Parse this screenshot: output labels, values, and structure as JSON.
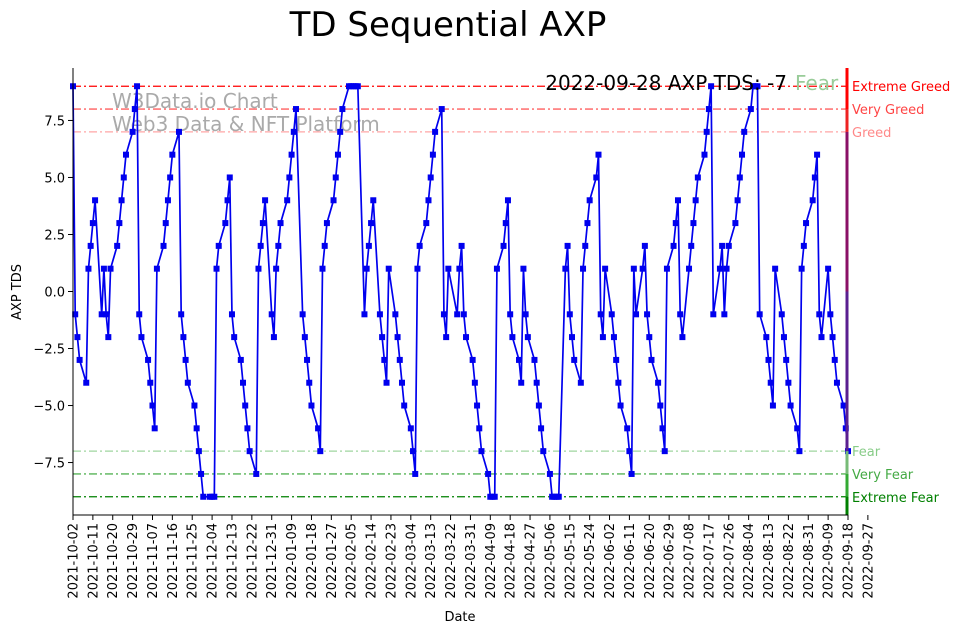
{
  "chart_data": {
    "type": "line",
    "title": "TD Sequential AXP",
    "xlabel": "Date",
    "ylabel": "AXP TDS",
    "status_text": "2022-09-28 AXP TDS: -7",
    "status_label": "Fear",
    "watermark": [
      "W3Data.io Chart",
      "Web3 Data & NFT Platform"
    ],
    "ylim": [
      -9.8,
      9.8
    ],
    "yticks": [
      -7.5,
      -5.0,
      -2.5,
      0.0,
      2.5,
      5.0,
      7.5
    ],
    "ytick_labels": [
      "−7.5",
      "−5.0",
      "−2.5",
      "0.0",
      "2.5",
      "5.0",
      "7.5"
    ],
    "start_date": "2021-10-02",
    "xticks": [
      "2021-10-02",
      "2021-10-11",
      "2021-10-20",
      "2021-10-29",
      "2021-11-07",
      "2021-11-16",
      "2021-11-25",
      "2021-12-04",
      "2021-12-13",
      "2021-12-22",
      "2021-12-31",
      "2022-01-09",
      "2022-01-18",
      "2022-01-27",
      "2022-02-05",
      "2022-02-14",
      "2022-02-23",
      "2022-03-04",
      "2022-03-13",
      "2022-03-22",
      "2022-03-31",
      "2022-04-09",
      "2022-04-18",
      "2022-04-27",
      "2022-05-06",
      "2022-05-15",
      "2022-05-24",
      "2022-06-02",
      "2022-06-11",
      "2022-06-20",
      "2022-06-29",
      "2022-07-08",
      "2022-07-17",
      "2022-07-26",
      "2022-08-04",
      "2022-08-13",
      "2022-08-22",
      "2022-08-31",
      "2022-09-09",
      "2022-09-18",
      "2022-09-27"
    ],
    "levels": [
      {
        "value": 9,
        "label": "Extreme Greed",
        "color": "#ff0000",
        "opacity": 1.0
      },
      {
        "value": 8,
        "label": "Very Greed",
        "color": "#ff4444",
        "opacity": 0.85
      },
      {
        "value": 7,
        "label": "Greed",
        "color": "#ff8888",
        "opacity": 0.75
      },
      {
        "value": -7,
        "label": "Fear",
        "color": "#88cc88",
        "opacity": 0.8
      },
      {
        "value": -8,
        "label": "Very Fear",
        "color": "#44aa44",
        "opacity": 0.9
      },
      {
        "value": -9,
        "label": "Extreme Fear",
        "color": "#008000",
        "opacity": 1.0
      }
    ],
    "series": [
      {
        "name": "AXP TDS",
        "color": "#0000ee",
        "points": [
          [
            0,
            9
          ],
          [
            1,
            -1
          ],
          [
            2,
            -2
          ],
          [
            3,
            -3
          ],
          [
            6,
            -4
          ],
          [
            7,
            1
          ],
          [
            8,
            2
          ],
          [
            9,
            3
          ],
          [
            10,
            4
          ],
          [
            13,
            -1
          ],
          [
            14,
            1
          ],
          [
            15,
            -1
          ],
          [
            16,
            -2
          ],
          [
            17,
            1
          ],
          [
            20,
            2
          ],
          [
            21,
            3
          ],
          [
            22,
            4
          ],
          [
            23,
            5
          ],
          [
            24,
            6
          ],
          [
            27,
            7
          ],
          [
            28,
            8
          ],
          [
            29,
            9
          ],
          [
            30,
            -1
          ],
          [
            31,
            -2
          ],
          [
            34,
            -3
          ],
          [
            35,
            -4
          ],
          [
            36,
            -5
          ],
          [
            37,
            -6
          ],
          [
            38,
            1
          ],
          [
            41,
            2
          ],
          [
            42,
            3
          ],
          [
            43,
            4
          ],
          [
            44,
            5
          ],
          [
            45,
            6
          ],
          [
            48,
            7
          ],
          [
            49,
            -1
          ],
          [
            50,
            -2
          ],
          [
            51,
            -3
          ],
          [
            52,
            -4
          ],
          [
            55,
            -5
          ],
          [
            56,
            -6
          ],
          [
            57,
            -7
          ],
          [
            58,
            -8
          ],
          [
            59,
            -9
          ],
          [
            62,
            -9
          ],
          [
            63,
            -9
          ],
          [
            64,
            -9
          ],
          [
            65,
            1
          ],
          [
            66,
            2
          ],
          [
            69,
            3
          ],
          [
            70,
            4
          ],
          [
            71,
            5
          ],
          [
            72,
            -1
          ],
          [
            73,
            -2
          ],
          [
            76,
            -3
          ],
          [
            77,
            -4
          ],
          [
            78,
            -5
          ],
          [
            79,
            -6
          ],
          [
            80,
            -7
          ],
          [
            83,
            -8
          ],
          [
            84,
            1
          ],
          [
            85,
            2
          ],
          [
            86,
            3
          ],
          [
            87,
            4
          ],
          [
            90,
            -1
          ],
          [
            91,
            -2
          ],
          [
            92,
            1
          ],
          [
            93,
            2
          ],
          [
            94,
            3
          ],
          [
            97,
            4
          ],
          [
            98,
            5
          ],
          [
            99,
            6
          ],
          [
            100,
            7
          ],
          [
            101,
            8
          ],
          [
            104,
            -1
          ],
          [
            105,
            -2
          ],
          [
            106,
            -3
          ],
          [
            107,
            -4
          ],
          [
            108,
            -5
          ],
          [
            111,
            -6
          ],
          [
            112,
            -7
          ],
          [
            113,
            1
          ],
          [
            114,
            2
          ],
          [
            115,
            3
          ],
          [
            118,
            4
          ],
          [
            119,
            5
          ],
          [
            120,
            6
          ],
          [
            121,
            7
          ],
          [
            122,
            8
          ],
          [
            125,
            9
          ],
          [
            126,
            9
          ],
          [
            127,
            9
          ],
          [
            128,
            9
          ],
          [
            129,
            9
          ],
          [
            132,
            -1
          ],
          [
            133,
            1
          ],
          [
            134,
            2
          ],
          [
            135,
            3
          ],
          [
            136,
            4
          ],
          [
            139,
            -1
          ],
          [
            140,
            -2
          ],
          [
            141,
            -3
          ],
          [
            142,
            -4
          ],
          [
            143,
            1
          ],
          [
            146,
            -1
          ],
          [
            147,
            -2
          ],
          [
            148,
            -3
          ],
          [
            149,
            -4
          ],
          [
            150,
            -5
          ],
          [
            153,
            -6
          ],
          [
            154,
            -7
          ],
          [
            155,
            -8
          ],
          [
            156,
            1
          ],
          [
            157,
            2
          ],
          [
            160,
            3
          ],
          [
            161,
            4
          ],
          [
            162,
            5
          ],
          [
            163,
            6
          ],
          [
            164,
            7
          ],
          [
            167,
            8
          ],
          [
            168,
            -1
          ],
          [
            169,
            -2
          ],
          [
            170,
            1
          ],
          [
            174,
            -1
          ],
          [
            175,
            1
          ],
          [
            176,
            2
          ],
          [
            177,
            -1
          ],
          [
            178,
            -2
          ],
          [
            181,
            -3
          ],
          [
            182,
            -4
          ],
          [
            183,
            -5
          ],
          [
            184,
            -6
          ],
          [
            185,
            -7
          ],
          [
            188,
            -8
          ],
          [
            189,
            -9
          ],
          [
            190,
            -9
          ],
          [
            191,
            -9
          ],
          [
            192,
            1
          ],
          [
            195,
            2
          ],
          [
            196,
            3
          ],
          [
            197,
            4
          ],
          [
            198,
            -1
          ],
          [
            199,
            -2
          ],
          [
            202,
            -3
          ],
          [
            203,
            -4
          ],
          [
            204,
            1
          ],
          [
            205,
            -1
          ],
          [
            206,
            -2
          ],
          [
            209,
            -3
          ],
          [
            210,
            -4
          ],
          [
            211,
            -5
          ],
          [
            212,
            -6
          ],
          [
            213,
            -7
          ],
          [
            216,
            -8
          ],
          [
            217,
            -9
          ],
          [
            218,
            -9
          ],
          [
            219,
            -9
          ],
          [
            220,
            -9
          ],
          [
            223,
            1
          ],
          [
            224,
            2
          ],
          [
            225,
            -1
          ],
          [
            226,
            -2
          ],
          [
            227,
            -3
          ],
          [
            230,
            -4
          ],
          [
            231,
            1
          ],
          [
            232,
            2
          ],
          [
            233,
            3
          ],
          [
            234,
            4
          ],
          [
            237,
            5
          ],
          [
            238,
            6
          ],
          [
            239,
            -1
          ],
          [
            240,
            -2
          ],
          [
            241,
            1
          ],
          [
            244,
            -1
          ],
          [
            245,
            -2
          ],
          [
            246,
            -3
          ],
          [
            247,
            -4
          ],
          [
            248,
            -5
          ],
          [
            251,
            -6
          ],
          [
            252,
            -7
          ],
          [
            253,
            -8
          ],
          [
            254,
            1
          ],
          [
            255,
            -1
          ],
          [
            258,
            1
          ],
          [
            259,
            2
          ],
          [
            260,
            -1
          ],
          [
            261,
            -2
          ],
          [
            262,
            -3
          ],
          [
            265,
            -4
          ],
          [
            266,
            -5
          ],
          [
            267,
            -6
          ],
          [
            268,
            -7
          ],
          [
            269,
            1
          ],
          [
            272,
            2
          ],
          [
            273,
            3
          ],
          [
            274,
            4
          ],
          [
            275,
            -1
          ],
          [
            276,
            -2
          ],
          [
            279,
            1
          ],
          [
            280,
            2
          ],
          [
            281,
            3
          ],
          [
            282,
            4
          ],
          [
            283,
            5
          ],
          [
            286,
            6
          ],
          [
            287,
            7
          ],
          [
            288,
            8
          ],
          [
            289,
            9
          ],
          [
            290,
            -1
          ],
          [
            293,
            1
          ],
          [
            294,
            2
          ],
          [
            295,
            -1
          ],
          [
            296,
            1
          ],
          [
            297,
            2
          ],
          [
            300,
            3
          ],
          [
            301,
            4
          ],
          [
            302,
            5
          ],
          [
            303,
            6
          ],
          [
            304,
            7
          ],
          [
            307,
            8
          ],
          [
            308,
            9
          ],
          [
            309,
            9
          ],
          [
            310,
            9
          ],
          [
            311,
            -1
          ],
          [
            314,
            -2
          ],
          [
            315,
            -3
          ],
          [
            316,
            -4
          ],
          [
            317,
            -5
          ],
          [
            318,
            1
          ],
          [
            321,
            -1
          ],
          [
            322,
            -2
          ],
          [
            323,
            -3
          ],
          [
            324,
            -4
          ],
          [
            325,
            -5
          ],
          [
            328,
            -6
          ],
          [
            329,
            -7
          ],
          [
            330,
            1
          ],
          [
            331,
            2
          ],
          [
            332,
            3
          ],
          [
            335,
            4
          ],
          [
            336,
            5
          ],
          [
            337,
            6
          ],
          [
            338,
            -1
          ],
          [
            339,
            -2
          ],
          [
            342,
            1
          ],
          [
            343,
            -1
          ],
          [
            344,
            -2
          ],
          [
            345,
            -3
          ],
          [
            346,
            -4
          ],
          [
            349,
            -5
          ],
          [
            350,
            -6
          ],
          [
            351,
            -7
          ]
        ]
      }
    ]
  }
}
